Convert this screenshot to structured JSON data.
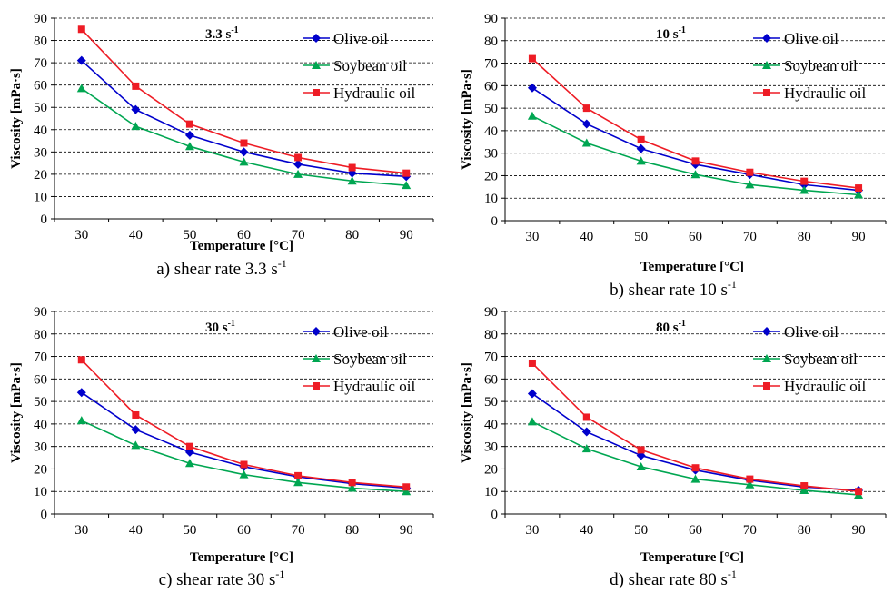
{
  "colors": {
    "olive": "#0000cc",
    "soybean": "#00a651",
    "hydraulic": "#ee1c25",
    "grid": "#000000"
  },
  "chart_data": [
    {
      "type": "line",
      "rate_label": "3.3 s",
      "rate_exp": "-1",
      "caption": "a) shear rate 3.3 s",
      "caption_exp": "-1",
      "xlabel": "Temperature [°C]",
      "ylabel": "Viscosity  [mPa·s]",
      "x": [
        30,
        40,
        50,
        60,
        70,
        80,
        90
      ],
      "ylim": [
        0,
        90
      ],
      "y_ticks": [
        0,
        10,
        20,
        30,
        40,
        50,
        60,
        70,
        80,
        90
      ],
      "grid": true,
      "legend_position": "top-right",
      "series": [
        {
          "name": "Olive oil",
          "marker": "diamond",
          "values": [
            71,
            49,
            37.5,
            30,
            24.5,
            20.5,
            19
          ]
        },
        {
          "name": "Soybean oil",
          "marker": "triangle",
          "values": [
            58.5,
            41.5,
            32.5,
            25.5,
            20,
            17,
            15
          ]
        },
        {
          "name": "Hydraulic oil",
          "marker": "square",
          "values": [
            85,
            59.5,
            42.5,
            34,
            27.5,
            23,
            20.5
          ]
        }
      ]
    },
    {
      "type": "line",
      "rate_label": "10 s",
      "rate_exp": "-1",
      "caption": "b) shear rate 10 s",
      "caption_exp": "-1",
      "xlabel": "Temperature [°C]",
      "ylabel": "Viscosity  [mPa·s]",
      "x": [
        30,
        40,
        50,
        60,
        70,
        80,
        90
      ],
      "ylim": [
        0,
        90
      ],
      "y_ticks": [
        0,
        10,
        20,
        30,
        40,
        50,
        60,
        70,
        80,
        90
      ],
      "grid": true,
      "legend_position": "top-right",
      "series": [
        {
          "name": "Olive oil",
          "marker": "diamond",
          "values": [
            59,
            43,
            32,
            25,
            20.5,
            16,
            13.5
          ]
        },
        {
          "name": "Soybean oil",
          "marker": "triangle",
          "values": [
            46.5,
            34.5,
            26.5,
            20.5,
            16,
            13.5,
            11.5
          ]
        },
        {
          "name": "Hydraulic oil",
          "marker": "square",
          "values": [
            72,
            50,
            36,
            26.5,
            21.5,
            17.5,
            14.5
          ]
        }
      ]
    },
    {
      "type": "line",
      "rate_label": "30 s",
      "rate_exp": "-1",
      "caption": "c) shear rate 30 s",
      "caption_exp": "-1",
      "xlabel": "Temperature [°C]",
      "ylabel": "Viscosity  [mPa·s]",
      "x": [
        30,
        40,
        50,
        60,
        70,
        80,
        90
      ],
      "ylim": [
        0,
        90
      ],
      "y_ticks": [
        0,
        10,
        20,
        30,
        40,
        50,
        60,
        70,
        80,
        90
      ],
      "grid": true,
      "legend_position": "top-right",
      "series": [
        {
          "name": "Olive oil",
          "marker": "diamond",
          "values": [
            54,
            37.5,
            27.5,
            21,
            16.5,
            13.5,
            11.5
          ]
        },
        {
          "name": "Soybean oil",
          "marker": "triangle",
          "values": [
            41.5,
            30.5,
            22.5,
            17.5,
            14,
            11.5,
            10
          ]
        },
        {
          "name": "Hydraulic oil",
          "marker": "square",
          "values": [
            68.5,
            44,
            30,
            22,
            17,
            14,
            12
          ]
        }
      ]
    },
    {
      "type": "line",
      "rate_label": "80 s",
      "rate_exp": "-1",
      "caption": "d) shear rate 80 s",
      "caption_exp": "-1",
      "xlabel": "Temperature [°C]",
      "ylabel": "Viscosity  [mPa·s]",
      "x": [
        30,
        40,
        50,
        60,
        70,
        80,
        90
      ],
      "ylim": [
        0,
        90
      ],
      "y_ticks": [
        0,
        10,
        20,
        30,
        40,
        50,
        60,
        70,
        80,
        90
      ],
      "grid": true,
      "legend_position": "top-right",
      "series": [
        {
          "name": "Olive oil",
          "marker": "diamond",
          "values": [
            53.5,
            36.5,
            26,
            19.5,
            15,
            12,
            10.5
          ]
        },
        {
          "name": "Soybean oil",
          "marker": "triangle",
          "values": [
            41,
            29,
            21,
            15.5,
            13,
            10.5,
            8.5
          ]
        },
        {
          "name": "Hydraulic oil",
          "marker": "square",
          "values": [
            67,
            43,
            28.5,
            20.5,
            15.5,
            12.5,
            10
          ]
        }
      ]
    }
  ]
}
